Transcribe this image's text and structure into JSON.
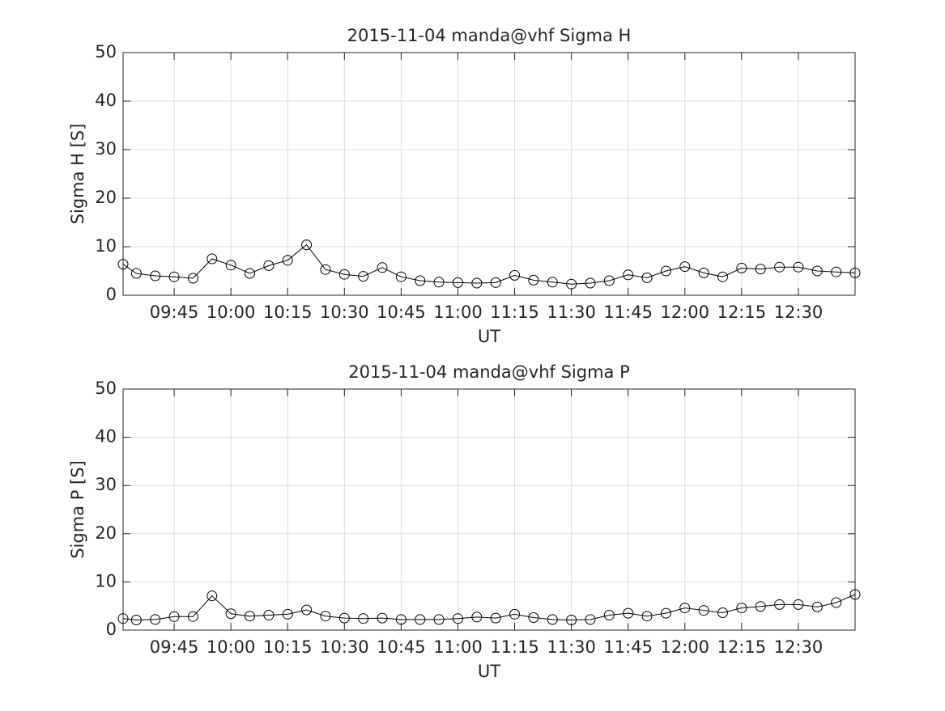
{
  "chart_data": [
    {
      "type": "line",
      "title": "2015-11-04  manda@vhf Sigma H",
      "x_label": "UT",
      "y_label": "Sigma H [S]",
      "color": "#000000",
      "marker": "circle",
      "grid": true,
      "x": [
        571.5,
        575,
        580,
        585,
        590,
        595,
        600,
        605,
        610,
        615,
        620,
        625,
        630,
        635,
        640,
        645,
        650,
        655,
        660,
        665,
        670,
        675,
        680,
        685,
        690,
        695,
        700,
        705,
        710,
        715,
        720,
        725,
        730,
        735,
        740,
        745,
        750,
        755,
        760,
        765
      ],
      "values": [
        6.4,
        4.5,
        4.0,
        3.8,
        3.5,
        7.5,
        6.2,
        4.5,
        6.1,
        7.2,
        10.4,
        5.3,
        4.3,
        3.9,
        5.7,
        3.8,
        3.0,
        2.7,
        2.6,
        2.5,
        2.6,
        4.1,
        3.1,
        2.7,
        2.3,
        2.5,
        3.0,
        4.2,
        3.6,
        5.0,
        5.9,
        4.6,
        3.8,
        5.6,
        5.4,
        5.8,
        5.8,
        5.0,
        4.8,
        4.6
      ],
      "xlim": [
        571.5,
        765
      ],
      "xticks": [
        {
          "value": 585,
          "label": "09:45"
        },
        {
          "value": 600,
          "label": "10:00"
        },
        {
          "value": 615,
          "label": "10:15"
        },
        {
          "value": 630,
          "label": "10:30"
        },
        {
          "value": 645,
          "label": "10:45"
        },
        {
          "value": 660,
          "label": "11:00"
        },
        {
          "value": 675,
          "label": "11:15"
        },
        {
          "value": 690,
          "label": "11:30"
        },
        {
          "value": 705,
          "label": "11:45"
        },
        {
          "value": 720,
          "label": "12:00"
        },
        {
          "value": 735,
          "label": "12:15"
        },
        {
          "value": 750,
          "label": "12:30"
        }
      ],
      "ylim": [
        0,
        50
      ],
      "yticks": [
        0,
        10,
        20,
        30,
        40,
        50
      ]
    },
    {
      "type": "line",
      "title": "2015-11-04  manda@vhf Sigma P",
      "x_label": "UT",
      "y_label": "Sigma P [S]",
      "color": "#000000",
      "marker": "circle",
      "grid": true,
      "x": [
        571.5,
        575,
        580,
        585,
        590,
        595,
        600,
        605,
        610,
        615,
        620,
        625,
        630,
        635,
        640,
        645,
        650,
        655,
        660,
        665,
        670,
        675,
        680,
        685,
        690,
        695,
        700,
        705,
        710,
        715,
        720,
        725,
        730,
        735,
        740,
        745,
        750,
        755,
        760,
        765
      ],
      "values": [
        2.4,
        2.1,
        2.2,
        2.8,
        2.8,
        7.1,
        3.4,
        2.9,
        3.1,
        3.3,
        4.2,
        2.9,
        2.5,
        2.4,
        2.5,
        2.2,
        2.2,
        2.2,
        2.4,
        2.7,
        2.5,
        3.3,
        2.6,
        2.2,
        2.1,
        2.2,
        3.1,
        3.5,
        2.9,
        3.5,
        4.6,
        4.1,
        3.6,
        4.6,
        4.9,
        5.3,
        5.3,
        4.8,
        5.7,
        7.4
      ],
      "xlim": [
        571.5,
        765
      ],
      "xticks": [
        {
          "value": 585,
          "label": "09:45"
        },
        {
          "value": 600,
          "label": "10:00"
        },
        {
          "value": 615,
          "label": "10:15"
        },
        {
          "value": 630,
          "label": "10:30"
        },
        {
          "value": 645,
          "label": "10:45"
        },
        {
          "value": 660,
          "label": "11:00"
        },
        {
          "value": 675,
          "label": "11:15"
        },
        {
          "value": 690,
          "label": "11:30"
        },
        {
          "value": 705,
          "label": "11:45"
        },
        {
          "value": 720,
          "label": "12:00"
        },
        {
          "value": 735,
          "label": "12:15"
        },
        {
          "value": 750,
          "label": "12:30"
        }
      ],
      "ylim": [
        0,
        50
      ],
      "yticks": [
        0,
        10,
        20,
        30,
        40,
        50
      ]
    }
  ]
}
